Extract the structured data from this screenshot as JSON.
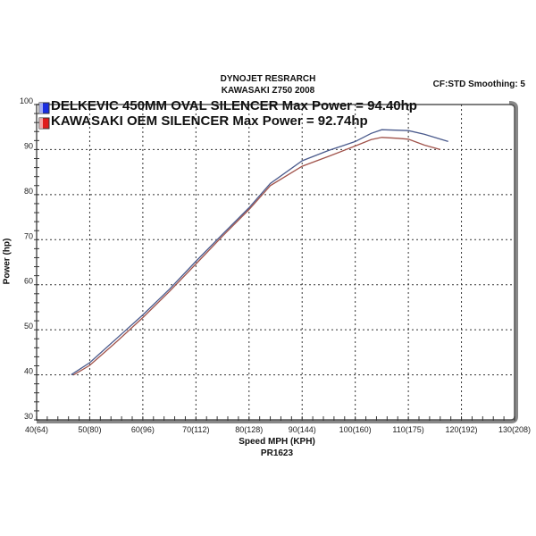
{
  "chart_data": {
    "type": "line",
    "title": "DYNOJET RESRARCH",
    "subtitle": "KAWASAKI Z750 2008",
    "info": "CF:STD Smoothing: 5",
    "xlabel": "Speed MPH (KPH)",
    "xlabel2": "PR1623",
    "ylabel": "Power (hp)",
    "xlim": [
      40,
      130
    ],
    "ylim": [
      30,
      100
    ],
    "grid": true,
    "legend_position": "top-left",
    "x_ticks": [
      "40(64)",
      "50(80)",
      "60(96)",
      "70(112)",
      "80(128)",
      "90(144)",
      "100(160)",
      "110(175)",
      "120(192)",
      "130(208)"
    ],
    "y_ticks": [
      "30",
      "40",
      "50",
      "60",
      "70",
      "80",
      "90",
      "100"
    ],
    "series": [
      {
        "name": "DELKEVIC 450MM OVAL SILENCER Max Power = 94.40hp",
        "color": "#4a5a8c",
        "swatch": "#1a2ee0",
        "x": [
          46.5,
          50,
          55,
          60,
          65,
          70,
          75,
          80,
          84,
          90,
          95,
          100,
          103,
          105,
          110,
          113,
          117.5
        ],
        "y": [
          40.0,
          42.7,
          48.0,
          53.3,
          59.0,
          65.2,
          71.2,
          77.1,
          82.5,
          87.5,
          89.8,
          91.8,
          93.6,
          94.4,
          94.2,
          93.4,
          91.8
        ]
      },
      {
        "name": "KAWASAKI OEM SILENCER Max Power = 92.74hp",
        "color": "#a0524a",
        "swatch": "#e01a1a",
        "x": [
          47,
          50,
          55,
          60,
          65,
          70,
          75,
          80,
          84,
          90,
          95,
          100,
          103,
          105,
          108,
          110,
          113,
          116
        ],
        "y": [
          40.0,
          42.1,
          47.3,
          52.7,
          58.5,
          64.6,
          70.8,
          76.7,
          82.0,
          86.3,
          88.5,
          90.8,
          92.2,
          92.7,
          92.5,
          92.3,
          91.0,
          90.0
        ]
      }
    ]
  }
}
